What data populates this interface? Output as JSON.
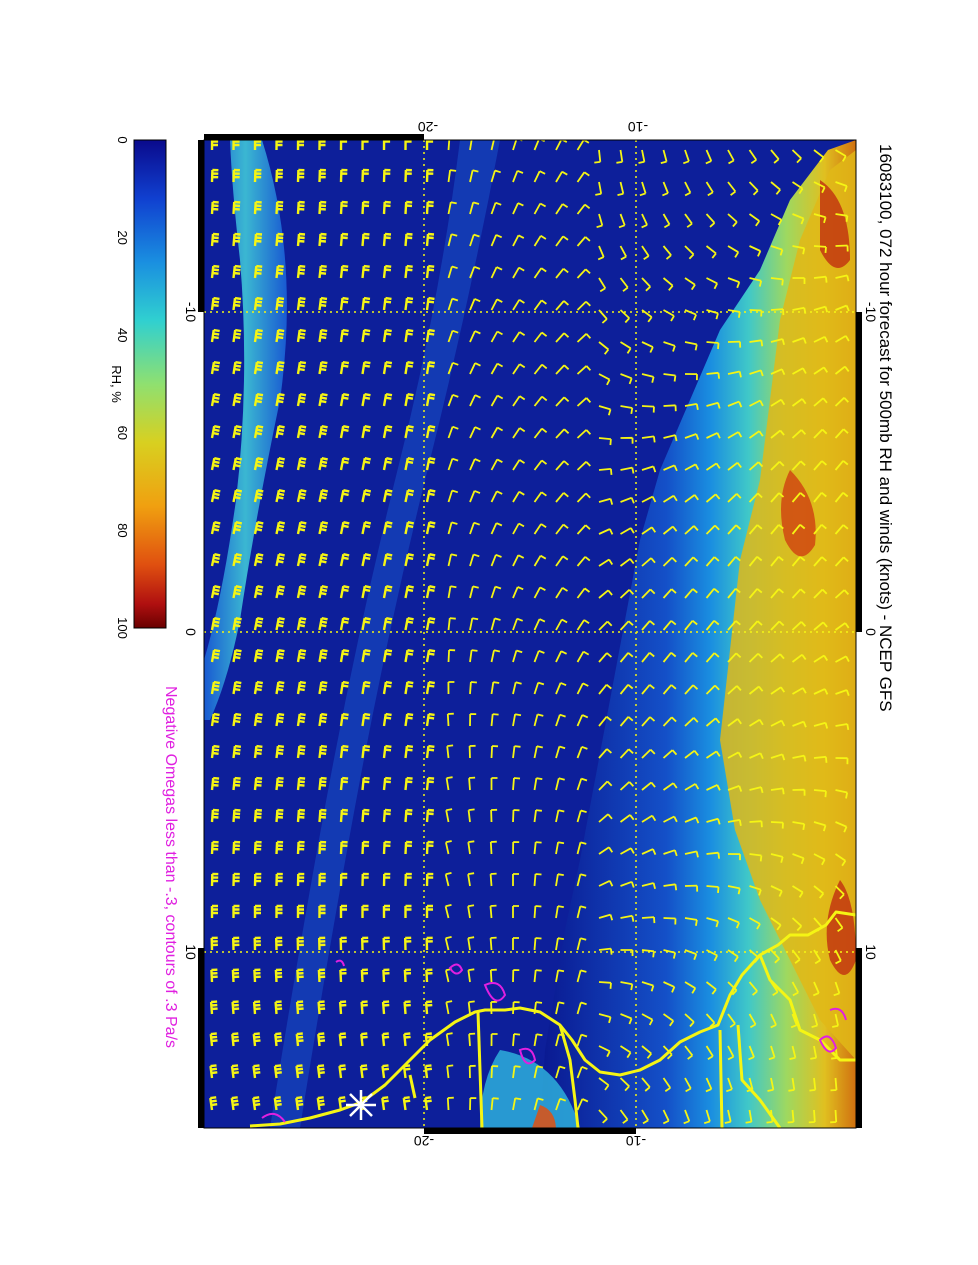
{
  "title": "16083100, 072 hour forecast for 500mb RH and winds (knots) - NCEP GFS",
  "subtitle": "Negative Omegas less than -.3, contours of .3 Pa/s",
  "colorbar": {
    "label": "RH, %",
    "ticks": [
      "0",
      "20",
      "40",
      "60",
      "80",
      "100"
    ],
    "colors": [
      "#0a0a8c",
      "#1040d0",
      "#1a8fe0",
      "#30d0d0",
      "#8fe070",
      "#d8d020",
      "#f0a010",
      "#e05010",
      "#b01010",
      "#6a0000"
    ]
  },
  "axes": {
    "top_ticks": [
      "-20",
      "-10"
    ],
    "bottom_ticks": [
      "-20",
      "-10"
    ],
    "left_ticks": [
      "-10",
      "0",
      "10"
    ],
    "right_ticks": [
      "-10",
      "0",
      "10"
    ]
  },
  "colors": {
    "barb": "#f5f514",
    "coast": "#f5f514",
    "omega_contour": "#e020e0",
    "grid": "#f5f514",
    "subtitle": "#e020e0"
  },
  "map": {
    "center_marker": "asterisk-icon"
  }
}
